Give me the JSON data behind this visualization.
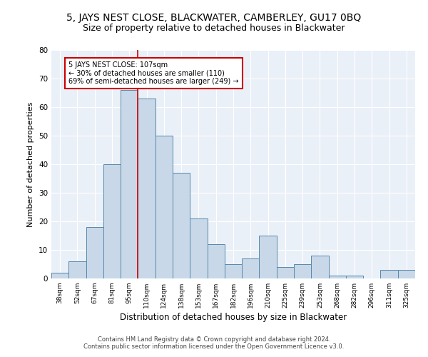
{
  "title": "5, JAYS NEST CLOSE, BLACKWATER, CAMBERLEY, GU17 0BQ",
  "subtitle": "Size of property relative to detached houses in Blackwater",
  "xlabel": "Distribution of detached houses by size in Blackwater",
  "ylabel": "Number of detached properties",
  "categories": [
    "38sqm",
    "52sqm",
    "67sqm",
    "81sqm",
    "95sqm",
    "110sqm",
    "124sqm",
    "138sqm",
    "153sqm",
    "167sqm",
    "182sqm",
    "196sqm",
    "210sqm",
    "225sqm",
    "239sqm",
    "253sqm",
    "268sqm",
    "282sqm",
    "296sqm",
    "311sqm",
    "325sqm"
  ],
  "values": [
    2,
    6,
    18,
    40,
    66,
    63,
    50,
    37,
    21,
    12,
    5,
    7,
    15,
    4,
    5,
    8,
    1,
    1,
    0,
    3,
    3
  ],
  "bar_color": "#c8d8e8",
  "bar_edge_color": "#5588aa",
  "annotation_line1": "5 JAYS NEST CLOSE: 107sqm",
  "annotation_line2": "← 30% of detached houses are smaller (110)",
  "annotation_line3": "69% of semi-detached houses are larger (249) →",
  "annotation_box_color": "#ffffff",
  "annotation_box_edge": "#cc0000",
  "vline_color": "#cc0000",
  "bg_color": "#eaf0f8",
  "footer1": "Contains HM Land Registry data © Crown copyright and database right 2024.",
  "footer2": "Contains public sector information licensed under the Open Government Licence v3.0.",
  "ylim": [
    0,
    80
  ],
  "title_fontsize": 10,
  "subtitle_fontsize": 9,
  "xlabel_fontsize": 8.5,
  "ylabel_fontsize": 8
}
